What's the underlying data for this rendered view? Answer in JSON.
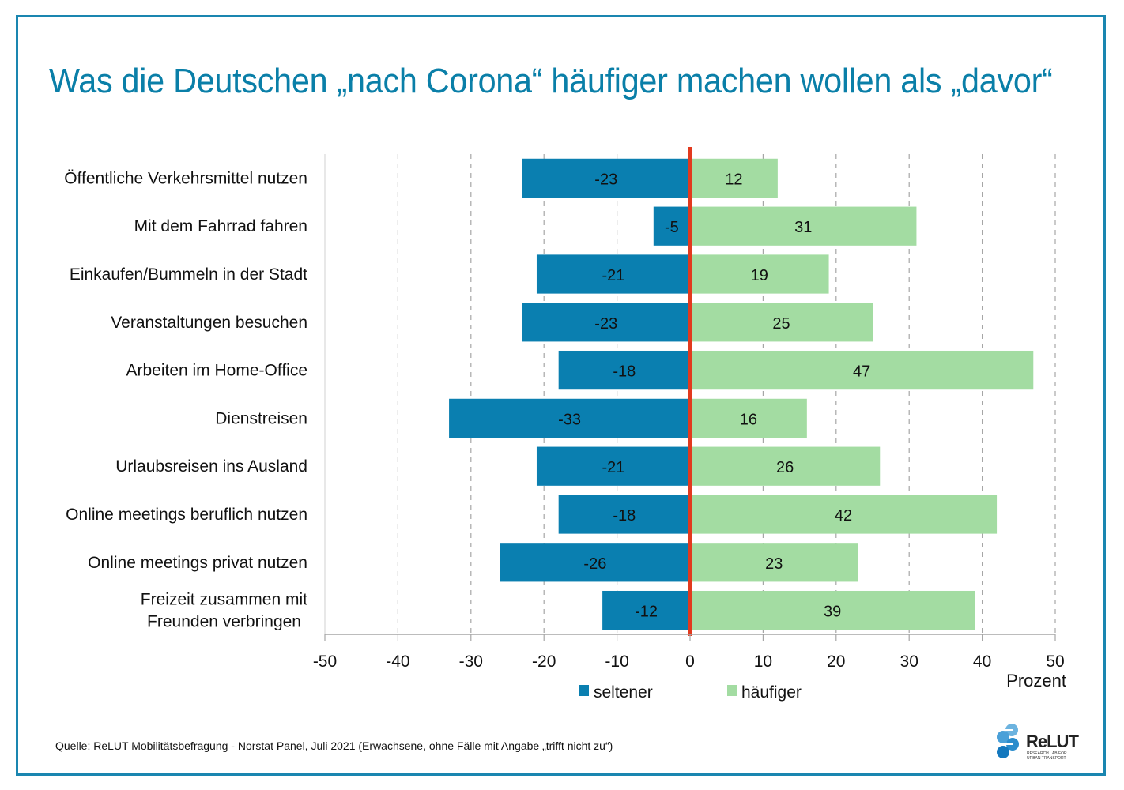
{
  "header": {
    "title": "Was die Deutschen „nach Corona“ häufiger machen wollen als „davor“"
  },
  "footer": {
    "source": "Quelle: ReLUT Mobilitätsbefragung - Norstat Panel, Juli 2021 (Erwachsene, ohne Fälle mit Angabe „trifft nicht zu“)",
    "logo_word": "ReLUT",
    "logo_sub_1": "RESEARCH LAB FOR",
    "logo_sub_2": "URBAN TRANSPORT"
  },
  "colors": {
    "seltener": "#0a7fb0",
    "haeufiger": "#a3dca2",
    "zero_line": "#e23a1e",
    "title": "#0a7fa8",
    "frame": "#1a86b0"
  },
  "chart_data": {
    "type": "bar",
    "orientation": "horizontal",
    "stacked": "diverging",
    "title": "Was die Deutschen „nach Corona“ häufiger machen wollen als „davor“",
    "xlabel": "Prozent",
    "ylabel": "",
    "xlim": [
      -50,
      50
    ],
    "xticks": [
      -50,
      -40,
      -30,
      -20,
      -10,
      0,
      10,
      20,
      30,
      40,
      50
    ],
    "grid": "vertical dashed",
    "legend_position": "bottom-center",
    "categories": [
      [
        "Öffentliche Verkehrsmittel nutzen"
      ],
      [
        "Mit dem Fahrrad fahren"
      ],
      [
        "Einkaufen/Bummeln in der Stadt"
      ],
      [
        "Veranstaltungen besuchen"
      ],
      [
        "Arbeiten im Home-Office"
      ],
      [
        "Dienstreisen"
      ],
      [
        "Urlaubsreisen ins Ausland"
      ],
      [
        "Online meetings beruflich nutzen"
      ],
      [
        "Online meetings privat nutzen"
      ],
      [
        "Freizeit zusammen mit",
        "Freunden verbringen"
      ]
    ],
    "series": [
      {
        "name": "seltener",
        "values": [
          -23,
          -5,
          -21,
          -23,
          -18,
          -33,
          -21,
          -18,
          -26,
          -12
        ]
      },
      {
        "name": "häufiger",
        "values": [
          12,
          31,
          19,
          25,
          47,
          16,
          26,
          42,
          23,
          39
        ]
      }
    ]
  }
}
